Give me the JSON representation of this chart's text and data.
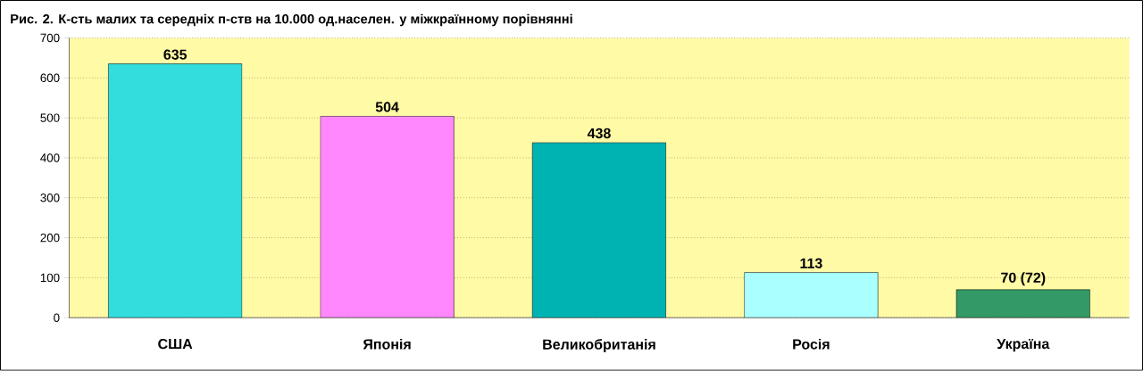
{
  "chart_data": {
    "type": "bar",
    "title": "Рис. 2. К-сть малих та середніх п-ств на 10.000 од.населен. у міжкраїнному порівнянні",
    "categories": [
      "США",
      "Японія",
      "Великобританія",
      "Росія",
      "Україна"
    ],
    "values": [
      635,
      504,
      438,
      113,
      70
    ],
    "colors": [
      "#33dddd",
      "#ff88ff",
      "#00b3b3",
      "#aaffff",
      "#339966"
    ],
    "value_labels": [
      "635",
      "504",
      "438",
      "113",
      "70 (72)"
    ],
    "ylim": [
      0,
      700
    ],
    "yticks": [
      0,
      100,
      200,
      300,
      400,
      500,
      600,
      700
    ],
    "grid": "y"
  }
}
